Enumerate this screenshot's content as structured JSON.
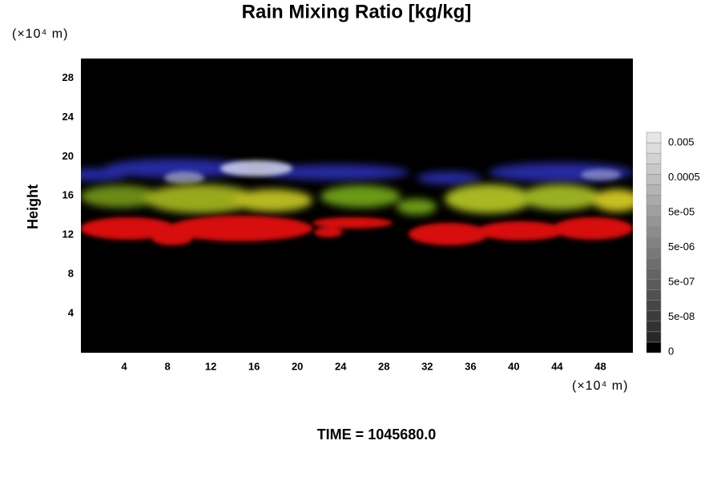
{
  "chart_data": {
    "type": "field",
    "title": "Rain Mixing Ratio [kg/kg]",
    "y_unit": "(×10⁴ m)",
    "ylabel": "Height",
    "x_unit": "(×10⁴ m)",
    "xlim": [
      0,
      51
    ],
    "xticks": [
      4,
      8,
      12,
      16,
      20,
      24,
      28,
      32,
      36,
      40,
      44,
      48
    ],
    "ylim": [
      0,
      30
    ],
    "yticks": [
      4,
      8,
      12,
      16,
      20,
      24,
      28
    ],
    "colorbar_labels": [
      "0",
      "5e-08",
      "5e-07",
      "5e-06",
      "5e-05",
      "0.0005",
      "0.005"
    ],
    "footer": "TIME = 1045680.0"
  }
}
